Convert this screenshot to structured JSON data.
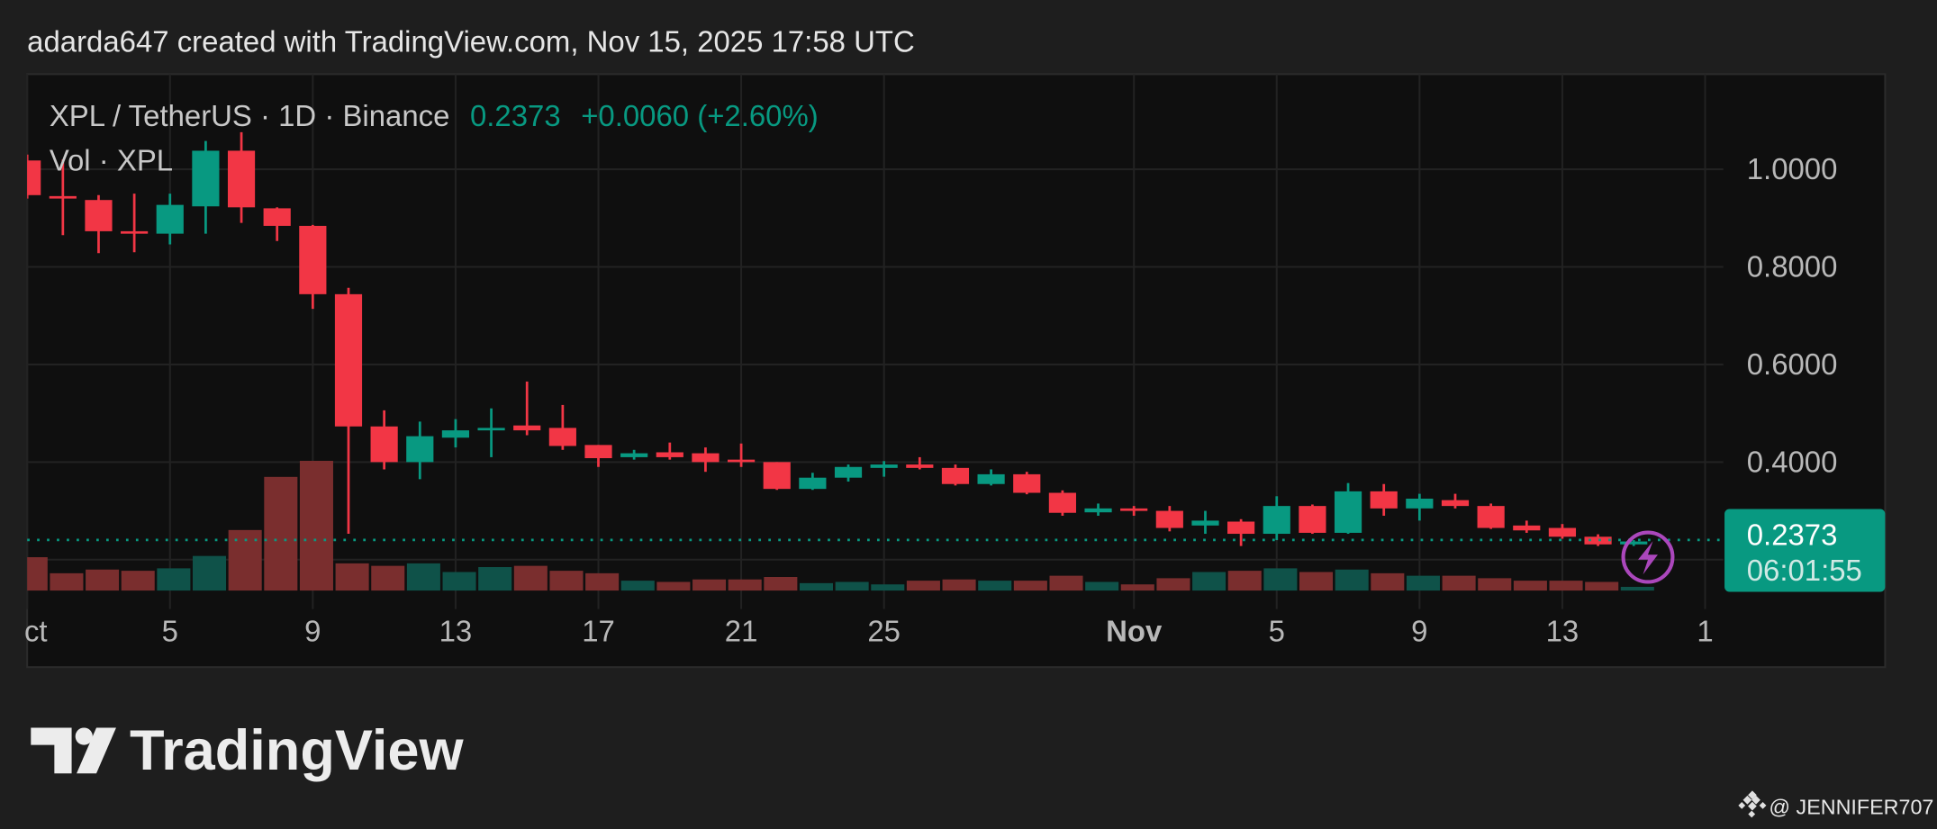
{
  "header": {
    "title": "adarda647 created with TradingView.com, Nov 15, 2025 17:58 UTC"
  },
  "legend": {
    "symbol": "XPL / TetherUS · 1D · Binance",
    "last_price": "0.2373",
    "change": "+0.0060 (+2.60%)",
    "volume_label": "Vol · XPL"
  },
  "price_label": {
    "price": "0.2373",
    "countdown": "06:01:55"
  },
  "brand": {
    "logo_text": "TradingView"
  },
  "watermark": {
    "text": "@ JENNIFER707"
  },
  "colors": {
    "up": "#089981",
    "down": "#f23645",
    "vol_up": "#0f5249",
    "vol_down": "#7a2e2e",
    "alert": "#ab47bc"
  },
  "chart_data": {
    "type": "candlestick",
    "title": "XPL / TetherUS · 1D · Binance",
    "ylim": [
      0.15,
      1.15
    ],
    "y_ticks": [
      "1.0000",
      "0.8000",
      "0.6000",
      "0.4000"
    ],
    "y_tick_values": [
      1.0,
      0.8,
      0.6,
      0.4
    ],
    "x_ticks": [
      {
        "label": "ct",
        "day": 0
      },
      {
        "label": "5",
        "day": 4
      },
      {
        "label": "9",
        "day": 8
      },
      {
        "label": "13",
        "day": 12
      },
      {
        "label": "17",
        "day": 16
      },
      {
        "label": "21",
        "day": 20
      },
      {
        "label": "25",
        "day": 24
      },
      {
        "label": "Nov",
        "day": 31,
        "bold": true
      },
      {
        "label": "5",
        "day": 35
      },
      {
        "label": "9",
        "day": 39
      },
      {
        "label": "13",
        "day": 43
      },
      {
        "label": "1",
        "day": 47
      }
    ],
    "last_price": 0.2373,
    "candles": [
      {
        "d": "Oct 1",
        "o": 1.018,
        "h": 1.03,
        "l": 0.94,
        "c": 0.947,
        "v": 27
      },
      {
        "d": "Oct 2",
        "o": 0.945,
        "h": 1.02,
        "l": 0.865,
        "c": 0.94,
        "v": 14
      },
      {
        "d": "Oct 3",
        "o": 0.937,
        "h": 0.947,
        "l": 0.828,
        "c": 0.873,
        "v": 17
      },
      {
        "d": "Oct 4",
        "o": 0.873,
        "h": 0.95,
        "l": 0.83,
        "c": 0.869,
        "v": 16
      },
      {
        "d": "Oct 5",
        "o": 0.868,
        "h": 0.95,
        "l": 0.846,
        "c": 0.927,
        "v": 18
      },
      {
        "d": "Oct 6",
        "o": 0.924,
        "h": 1.058,
        "l": 0.868,
        "c": 1.038,
        "v": 28
      },
      {
        "d": "Oct 7",
        "o": 1.038,
        "h": 1.076,
        "l": 0.89,
        "c": 0.922,
        "v": 49
      },
      {
        "d": "Oct 8",
        "o": 0.92,
        "h": 0.922,
        "l": 0.853,
        "c": 0.884,
        "v": 92
      },
      {
        "d": "Oct 9",
        "o": 0.884,
        "h": 0.886,
        "l": 0.714,
        "c": 0.744,
        "v": 105
      },
      {
        "d": "Oct 10",
        "o": 0.744,
        "h": 0.757,
        "l": 0.253,
        "c": 0.473,
        "v": 22
      },
      {
        "d": "Oct 11",
        "o": 0.473,
        "h": 0.506,
        "l": 0.385,
        "c": 0.4,
        "v": 20
      },
      {
        "d": "Oct 12",
        "o": 0.4,
        "h": 0.483,
        "l": 0.365,
        "c": 0.453,
        "v": 22
      },
      {
        "d": "Oct 13",
        "o": 0.45,
        "h": 0.488,
        "l": 0.43,
        "c": 0.465,
        "v": 15
      },
      {
        "d": "Oct 14",
        "o": 0.465,
        "h": 0.51,
        "l": 0.41,
        "c": 0.47,
        "v": 19
      },
      {
        "d": "Oct 15",
        "o": 0.475,
        "h": 0.565,
        "l": 0.455,
        "c": 0.465,
        "v": 20
      },
      {
        "d": "Oct 16",
        "o": 0.47,
        "h": 0.517,
        "l": 0.425,
        "c": 0.433,
        "v": 16
      },
      {
        "d": "Oct 17",
        "o": 0.435,
        "h": 0.435,
        "l": 0.39,
        "c": 0.408,
        "v": 14
      },
      {
        "d": "Oct 18",
        "o": 0.41,
        "h": 0.425,
        "l": 0.405,
        "c": 0.418,
        "v": 8
      },
      {
        "d": "Oct 19",
        "o": 0.42,
        "h": 0.44,
        "l": 0.405,
        "c": 0.41,
        "v": 7
      },
      {
        "d": "Oct 20",
        "o": 0.418,
        "h": 0.43,
        "l": 0.38,
        "c": 0.4,
        "v": 9
      },
      {
        "d": "Oct 21",
        "o": 0.405,
        "h": 0.438,
        "l": 0.39,
        "c": 0.4,
        "v": 9
      },
      {
        "d": "Oct 22",
        "o": 0.4,
        "h": 0.4,
        "l": 0.343,
        "c": 0.345,
        "v": 11
      },
      {
        "d": "Oct 23",
        "o": 0.345,
        "h": 0.378,
        "l": 0.343,
        "c": 0.368,
        "v": 6
      },
      {
        "d": "Oct 24",
        "o": 0.368,
        "h": 0.395,
        "l": 0.36,
        "c": 0.39,
        "v": 7
      },
      {
        "d": "Oct 25",
        "o": 0.388,
        "h": 0.402,
        "l": 0.37,
        "c": 0.395,
        "v": 5
      },
      {
        "d": "Oct 26",
        "o": 0.395,
        "h": 0.41,
        "l": 0.385,
        "c": 0.388,
        "v": 8
      },
      {
        "d": "Oct 27",
        "o": 0.388,
        "h": 0.395,
        "l": 0.352,
        "c": 0.355,
        "v": 9
      },
      {
        "d": "Oct 28",
        "o": 0.355,
        "h": 0.385,
        "l": 0.352,
        "c": 0.375,
        "v": 8
      },
      {
        "d": "Oct 29",
        "o": 0.375,
        "h": 0.38,
        "l": 0.334,
        "c": 0.337,
        "v": 8
      },
      {
        "d": "Oct 30",
        "o": 0.337,
        "h": 0.342,
        "l": 0.29,
        "c": 0.296,
        "v": 12
      },
      {
        "d": "Oct 31",
        "o": 0.297,
        "h": 0.315,
        "l": 0.29,
        "c": 0.305,
        "v": 7
      },
      {
        "d": "Nov 1",
        "o": 0.305,
        "h": 0.31,
        "l": 0.29,
        "c": 0.3,
        "v": 5
      },
      {
        "d": "Nov 2",
        "o": 0.3,
        "h": 0.31,
        "l": 0.258,
        "c": 0.265,
        "v": 10
      },
      {
        "d": "Nov 3",
        "o": 0.27,
        "h": 0.3,
        "l": 0.253,
        "c": 0.28,
        "v": 15
      },
      {
        "d": "Nov 4",
        "o": 0.278,
        "h": 0.283,
        "l": 0.228,
        "c": 0.253,
        "v": 16
      },
      {
        "d": "Nov 5",
        "o": 0.253,
        "h": 0.33,
        "l": 0.24,
        "c": 0.31,
        "v": 18
      },
      {
        "d": "Nov 6",
        "o": 0.31,
        "h": 0.313,
        "l": 0.253,
        "c": 0.255,
        "v": 15
      },
      {
        "d": "Nov 7",
        "o": 0.255,
        "h": 0.357,
        "l": 0.253,
        "c": 0.34,
        "v": 17
      },
      {
        "d": "Nov 8",
        "o": 0.34,
        "h": 0.355,
        "l": 0.29,
        "c": 0.305,
        "v": 14
      },
      {
        "d": "Nov 9",
        "o": 0.305,
        "h": 0.335,
        "l": 0.28,
        "c": 0.325,
        "v": 12
      },
      {
        "d": "Nov 10",
        "o": 0.322,
        "h": 0.335,
        "l": 0.305,
        "c": 0.31,
        "v": 12
      },
      {
        "d": "Nov 11",
        "o": 0.31,
        "h": 0.315,
        "l": 0.263,
        "c": 0.265,
        "v": 10
      },
      {
        "d": "Nov 12",
        "o": 0.27,
        "h": 0.28,
        "l": 0.255,
        "c": 0.26,
        "v": 8
      },
      {
        "d": "Nov 13",
        "o": 0.265,
        "h": 0.273,
        "l": 0.243,
        "c": 0.247,
        "v": 8
      },
      {
        "d": "Nov 14",
        "o": 0.247,
        "h": 0.252,
        "l": 0.228,
        "c": 0.2313,
        "v": 7
      },
      {
        "d": "Nov 15",
        "o": 0.2313,
        "h": 0.24,
        "l": 0.228,
        "c": 0.2373,
        "v": 3
      }
    ]
  }
}
